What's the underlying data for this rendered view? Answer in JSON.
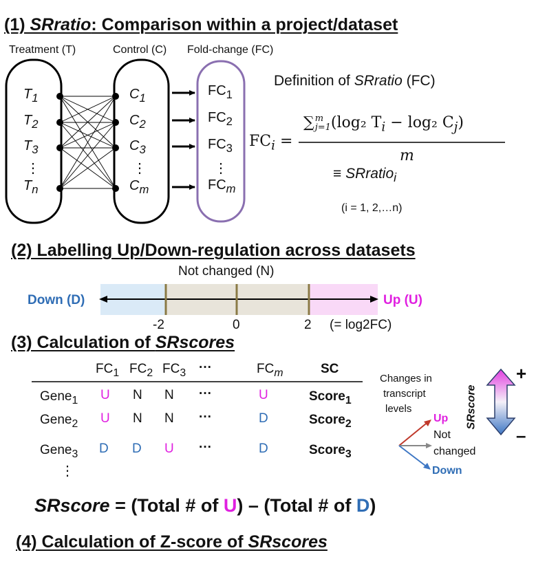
{
  "section1": {
    "num": "(1) ",
    "title_italic": "SRratio",
    "title_rest": ": Comparison within a project/dataset",
    "label_treatment": "Treatment (T)",
    "label_control": "Control (C)",
    "label_fc": "Fold-change (FC)",
    "t_items": [
      {
        "base": "T",
        "sub": "1"
      },
      {
        "base": "T",
        "sub": "2"
      },
      {
        "base": "T",
        "sub": "3"
      },
      {
        "base": "T",
        "sub": "n"
      }
    ],
    "c_items": [
      {
        "base": "C",
        "sub": "1"
      },
      {
        "base": "C",
        "sub": "2"
      },
      {
        "base": "C",
        "sub": "3"
      },
      {
        "base": "C",
        "sub": "m"
      }
    ],
    "fc_items": [
      {
        "base": "FC",
        "sub": "1"
      },
      {
        "base": "FC",
        "sub": "2"
      },
      {
        "base": "FC",
        "sub": "3"
      },
      {
        "base": "FC",
        "sub": "m"
      }
    ],
    "ellipsis": "⋮",
    "definition_pre": "Definition of ",
    "definition_italic": "SRratio",
    "definition_post": " (FC)",
    "formula_lhs": "FC",
    "formula_lhs_sub": "i",
    "formula_equals": "=",
    "formula_sum": "∑",
    "formula_sum_sup": "m",
    "formula_sum_sub": "j=1",
    "formula_numerator": "(log₂ T",
    "formula_num_sub1": "i",
    "formula_num_mid": " − log₂ C",
    "formula_num_sub2": "j",
    "formula_num_end": ")",
    "formula_denominator": "m",
    "equiv_symbol": "≡ ",
    "equiv_italic": "SRratio",
    "equiv_sub": "i",
    "index_range": "(i = 1, 2,…n)"
  },
  "section2": {
    "title": "(2) Labelling Up/Down-regulation across datasets",
    "not_changed": "Not changed (N)",
    "down_label": "Down (D)",
    "up_label": "Up (U)",
    "ticks": [
      "-2",
      "0",
      "2"
    ],
    "unit_note": "(= log2FC)",
    "colors": {
      "down_bg": "#daeaf7",
      "mid_bg": "#e8e4da",
      "up_bg": "#f9d9f7",
      "tick": "#8a7a45"
    }
  },
  "section3": {
    "title_pre": "(3) Calculation of ",
    "title_italic": "SRscores",
    "columns": [
      {
        "base": "FC",
        "sub": "1"
      },
      {
        "base": "FC",
        "sub": "2"
      },
      {
        "base": "FC",
        "sub": "3"
      },
      {
        "base": "···",
        "sub": ""
      },
      {
        "base": "FC",
        "sub": "m"
      }
    ],
    "sc_header": "SC",
    "rows": [
      {
        "gene": "Gene",
        "gene_sub": "1",
        "cells": [
          "U",
          "N",
          "N",
          "···",
          "U"
        ],
        "score": "Score",
        "score_sub": "1"
      },
      {
        "gene": "Gene",
        "gene_sub": "2",
        "cells": [
          "U",
          "N",
          "N",
          "···",
          "D"
        ],
        "score": "Score",
        "score_sub": "2"
      },
      {
        "gene": "Gene",
        "gene_sub": "3",
        "cells": [
          "D",
          "D",
          "U",
          "···",
          "D"
        ],
        "score": "Score",
        "score_sub": "3"
      }
    ],
    "row_ellipsis": "⋮",
    "legend_title_lines": [
      "Changes in",
      "transcript",
      "levels"
    ],
    "legend_up": "Up",
    "legend_not": "Not",
    "legend_changed": "changed",
    "legend_down": "Down",
    "srscore_axis": "SRscore",
    "plus": "+",
    "minus": "–",
    "formula_italic": "SRscore",
    "formula_eq": " = (Total # of ",
    "formula_u": "U",
    "formula_mid": ") – (Total # of ",
    "formula_d": "D",
    "formula_end": ")"
  },
  "section4": {
    "title_pre": "(4) Calculation of Z-score of ",
    "title_italic": "SRscores"
  }
}
